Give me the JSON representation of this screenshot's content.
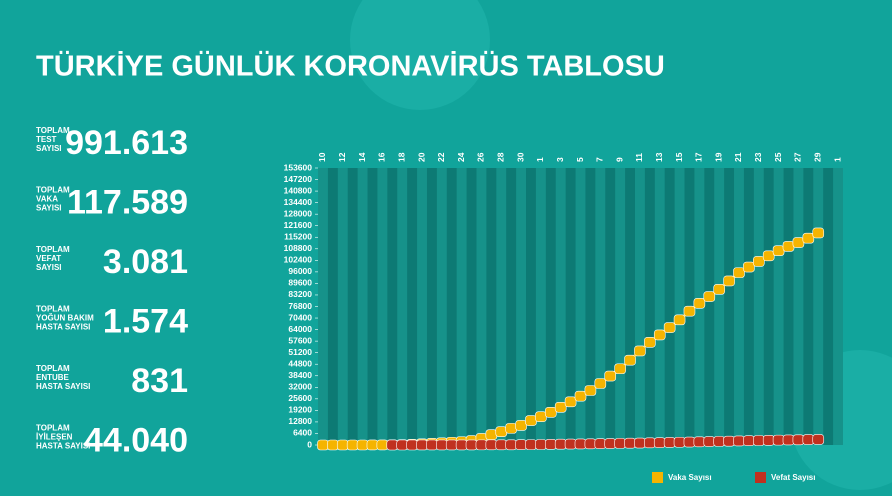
{
  "title": "TÜRKİYE GÜNLÜK KORONAVİRÜS TABLOSU",
  "stats": [
    {
      "label": [
        "TOPLAM",
        "TEST",
        "SAYISI"
      ],
      "value": "991.613"
    },
    {
      "label": [
        "TOPLAM",
        "VAKA",
        "SAYISI"
      ],
      "value": "117.589"
    },
    {
      "label": [
        "TOPLAM",
        "VEFAT",
        "SAYISI"
      ],
      "value": "3.081"
    },
    {
      "label": [
        "TOPLAM",
        "YOĞUN BAKIM",
        "HASTA SAYISI"
      ],
      "value": "1.574"
    },
    {
      "label": [
        "TOPLAM",
        "ENTUBE",
        "HASTA SAYISI"
      ],
      "value": "831"
    },
    {
      "label": [
        "TOPLAM",
        "İYİLEŞEN",
        "HASTA SAYISI"
      ],
      "value": "44.040"
    }
  ],
  "chart_data": {
    "type": "line",
    "categories": [
      "10",
      null,
      "12",
      null,
      "14",
      null,
      "16",
      null,
      "18",
      null,
      "20",
      null,
      "22",
      null,
      "24",
      null,
      "26",
      null,
      "28",
      null,
      "30",
      null,
      "1",
      null,
      "3",
      null,
      "5",
      null,
      "7",
      null,
      "9",
      null,
      "11",
      null,
      "13",
      null,
      "15",
      null,
      "17",
      null,
      "19",
      null,
      "21",
      null,
      "23",
      null,
      "25",
      null,
      "27",
      null,
      "29",
      null,
      "1"
    ],
    "series": [
      {
        "name": "Vaka Sayısı",
        "color": "#f5b400",
        "values": [
          1,
          1,
          1,
          5,
          6,
          18,
          47,
          98,
          191,
          359,
          670,
          947,
          1236,
          1529,
          1872,
          2433,
          3629,
          5698,
          7402,
          9217,
          10827,
          13531,
          15679,
          18135,
          20921,
          23934,
          27069,
          30217,
          34109,
          38226,
          42282,
          47029,
          52167,
          56956,
          61049,
          65111,
          69392,
          74193,
          78546,
          82329,
          86306,
          90980,
          95591,
          98674,
          101790,
          104912,
          107773,
          110130,
          112261,
          114653,
          117589,
          null,
          null
        ]
      },
      {
        "name": "Vefat Sayısı",
        "color": "#c0311f",
        "values": [
          null,
          null,
          null,
          null,
          null,
          null,
          null,
          1,
          2,
          3,
          9,
          21,
          30,
          37,
          44,
          59,
          75,
          92,
          108,
          131,
          168,
          214,
          277,
          356,
          425,
          501,
          574,
          649,
          725,
          812,
          908,
          1006,
          1101,
          1198,
          1296,
          1403,
          1518,
          1643,
          1769,
          1890,
          2017,
          2140,
          2259,
          2376,
          2491,
          2600,
          2706,
          2805,
          2900,
          2992,
          3081,
          null,
          null
        ]
      }
    ],
    "ylim": [
      0,
      153600
    ],
    "yticks": [
      0,
      6400,
      12800,
      19200,
      25600,
      32000,
      38400,
      44800,
      51200,
      57600,
      64000,
      70400,
      76800,
      83200,
      89600,
      96000,
      102400,
      108800,
      115200,
      121600,
      128000,
      134400,
      140800,
      147200,
      153600
    ]
  }
}
